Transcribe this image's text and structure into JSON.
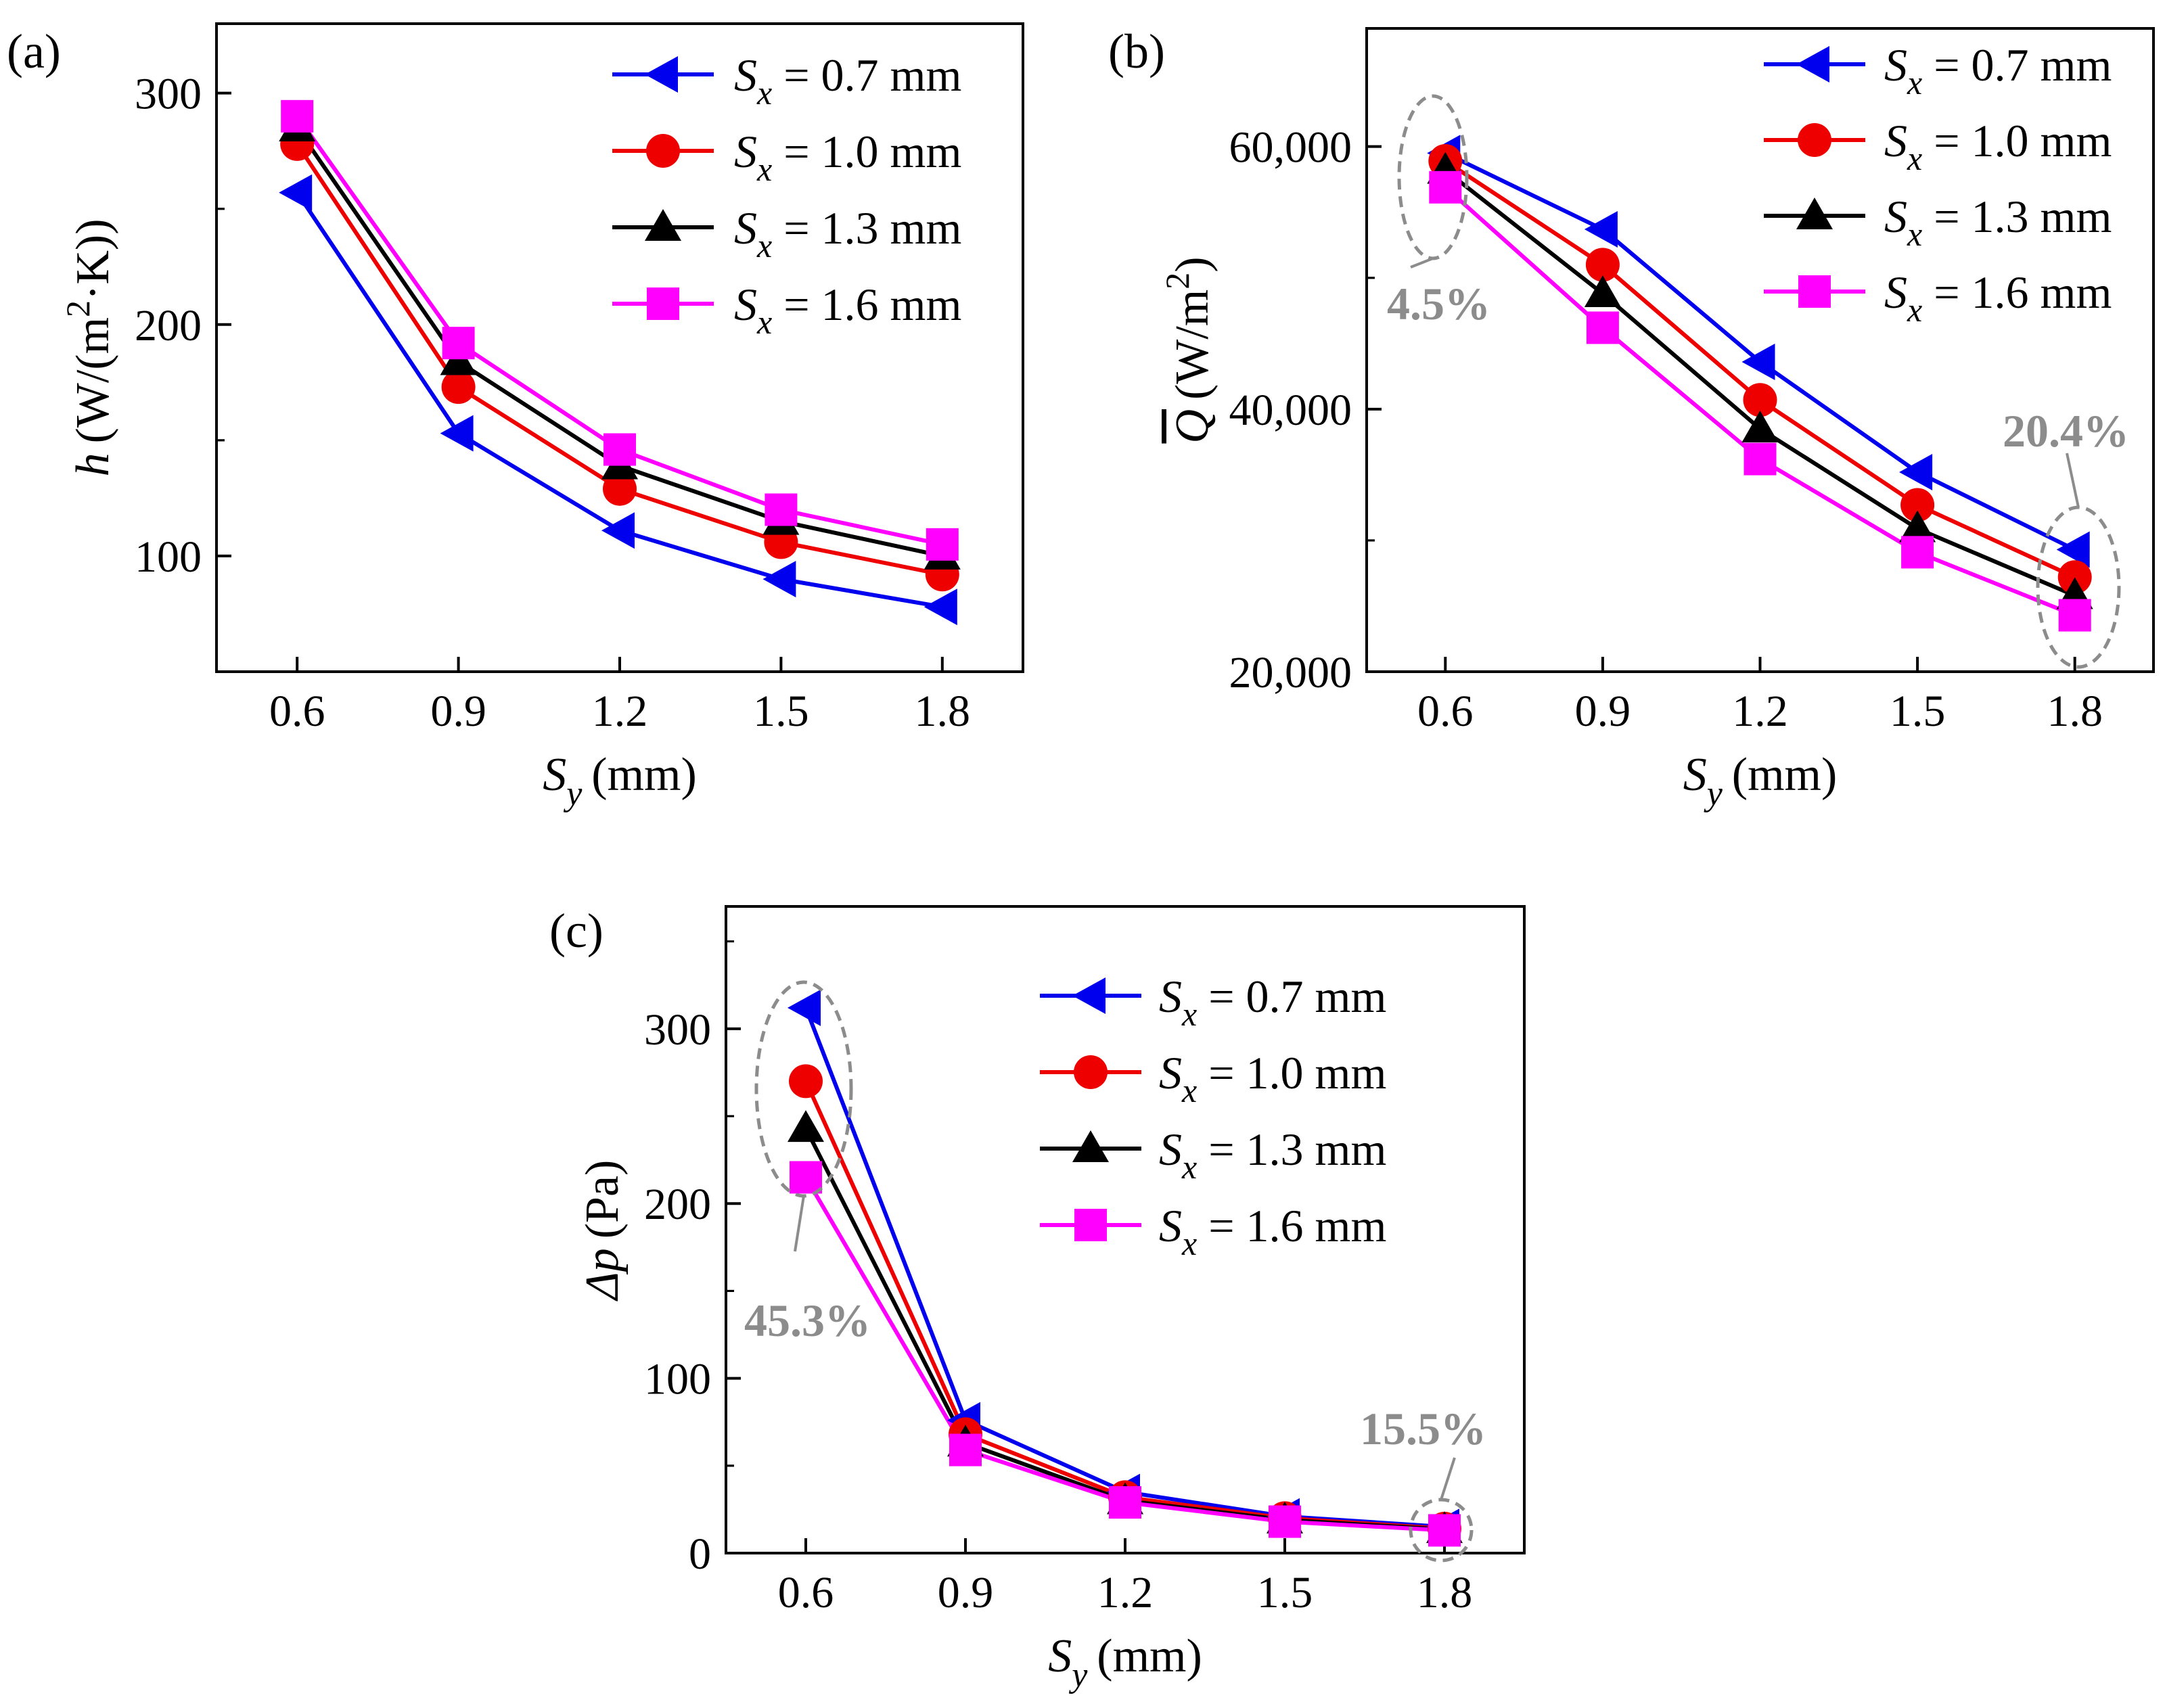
{
  "colors": {
    "sx07": "#0000ee",
    "sx10": "#ee0000",
    "sx13": "#000000",
    "sx16": "#ff00ff",
    "annotation": "#8c8c8c"
  },
  "chart_data": [
    {
      "type": "line",
      "panel_label": "(a)",
      "xlabel_base": "S",
      "xlabel_sub": "y",
      "xlabel_unit": "(mm)",
      "ylabel_var": "h",
      "ylabel_unit_pre": "(W/(m",
      "ylabel_sup": "2",
      "ylabel_unit_post": "·K))",
      "x": [
        0.6,
        0.9,
        1.2,
        1.5,
        1.8
      ],
      "x_ticks": [
        "0.6",
        "0.9",
        "1.2",
        "1.5",
        "1.8"
      ],
      "xlim": [
        0.45,
        1.95
      ],
      "ylim": [
        50,
        330
      ],
      "y_ticks": [
        100,
        200,
        300
      ],
      "y_tick_labels": [
        "100",
        "200",
        "300"
      ],
      "series": [
        {
          "label_base": "S",
          "label_sub": "x",
          "label_rest": " = 0.7 mm",
          "marker": "triangle-left",
          "color": "#0000ee",
          "values": [
            257,
            153,
            111,
            90,
            78
          ]
        },
        {
          "label_base": "S",
          "label_sub": "x",
          "label_rest": " = 1.0 mm",
          "marker": "circle",
          "color": "#ee0000",
          "values": [
            278,
            173,
            129,
            106,
            92
          ]
        },
        {
          "label_base": "S",
          "label_sub": "x",
          "label_rest": " = 1.3 mm",
          "marker": "triangle-up",
          "color": "#000000",
          "values": [
            285,
            184,
            139,
            115,
            100
          ]
        },
        {
          "label_base": "S",
          "label_sub": "x",
          "label_rest": " = 1.6 mm",
          "marker": "square",
          "color": "#ff00ff",
          "values": [
            290,
            192,
            146,
            120,
            105
          ]
        }
      ],
      "annotations": []
    },
    {
      "type": "line",
      "panel_label": "(b)",
      "xlabel_base": "S",
      "xlabel_sub": "y",
      "xlabel_unit": "(mm)",
      "ylabel_var": "Q",
      "ylabel_unit_pre": "(W/m",
      "ylabel_sup": "2",
      "ylabel_unit_post": ")",
      "x": [
        0.6,
        0.9,
        1.2,
        1.5,
        1.8
      ],
      "x_ticks": [
        "0.6",
        "0.9",
        "1.2",
        "1.5",
        "1.8"
      ],
      "xlim": [
        0.45,
        1.95
      ],
      "ylim": [
        20000,
        69000
      ],
      "y_ticks": [
        20000,
        40000,
        60000
      ],
      "y_tick_labels": [
        "20,000",
        "40,000",
        "60,000"
      ],
      "series": [
        {
          "label_base": "S",
          "label_sub": "x",
          "label_rest": " = 0.7 mm",
          "marker": "triangle-left",
          "color": "#0000ee",
          "values": [
            59500,
            53700,
            43600,
            35200,
            29300
          ]
        },
        {
          "label_base": "S",
          "label_sub": "x",
          "label_rest": " = 1.0 mm",
          "marker": "circle",
          "color": "#ee0000",
          "values": [
            58900,
            51000,
            40700,
            32700,
            27200
          ]
        },
        {
          "label_base": "S",
          "label_sub": "x",
          "label_rest": " = 1.3 mm",
          "marker": "triangle-up",
          "color": "#000000",
          "values": [
            58200,
            48800,
            38500,
            30900,
            25800
          ]
        },
        {
          "label_base": "S",
          "label_sub": "x",
          "label_rest": " = 1.6 mm",
          "marker": "square",
          "color": "#ff00ff",
          "values": [
            56900,
            46200,
            36200,
            29100,
            24300
          ]
        }
      ],
      "annotations": [
        {
          "text": "4.5%",
          "at_x": 0.6,
          "at_y": 58200
        },
        {
          "text": "20.4%",
          "at_x": 1.8,
          "at_y": 26800
        }
      ]
    },
    {
      "type": "line",
      "panel_label": "(c)",
      "xlabel_base": "S",
      "xlabel_sub": "y",
      "xlabel_unit": "(mm)",
      "ylabel_var": "Δp",
      "ylabel_unit_pre": "(Pa)",
      "ylabel_sup": "",
      "ylabel_unit_post": "",
      "x": [
        0.6,
        0.9,
        1.2,
        1.5,
        1.8
      ],
      "x_ticks": [
        "0.6",
        "0.9",
        "1.2",
        "1.5",
        "1.8"
      ],
      "xlim": [
        0.45,
        1.95
      ],
      "ylim": [
        0,
        370
      ],
      "y_ticks": [
        0,
        100,
        200,
        300
      ],
      "y_tick_labels": [
        "0",
        "100",
        "200",
        "300"
      ],
      "series": [
        {
          "label_base": "S",
          "label_sub": "x",
          "label_rest": " = 0.7 mm",
          "marker": "triangle-left",
          "color": "#0000ee",
          "values": [
            312,
            76,
            35,
            21,
            15
          ]
        },
        {
          "label_base": "S",
          "label_sub": "x",
          "label_rest": " = 1.0 mm",
          "marker": "circle",
          "color": "#ee0000",
          "values": [
            270,
            68,
            32,
            20,
            14
          ]
        },
        {
          "label_base": "S",
          "label_sub": "x",
          "label_rest": " = 1.3 mm",
          "marker": "triangle-up",
          "color": "#000000",
          "values": [
            243,
            63,
            30,
            19,
            13.5
          ]
        },
        {
          "label_base": "S",
          "label_sub": "x",
          "label_rest": " = 1.6 mm",
          "marker": "square",
          "color": "#ff00ff",
          "values": [
            215,
            59,
            29,
            18,
            13
          ]
        }
      ],
      "annotations": [
        {
          "text": "45.3%",
          "at_x": 0.6,
          "at_y": 262
        },
        {
          "text": "15.5%",
          "at_x": 1.8,
          "at_y": 14
        }
      ]
    }
  ]
}
